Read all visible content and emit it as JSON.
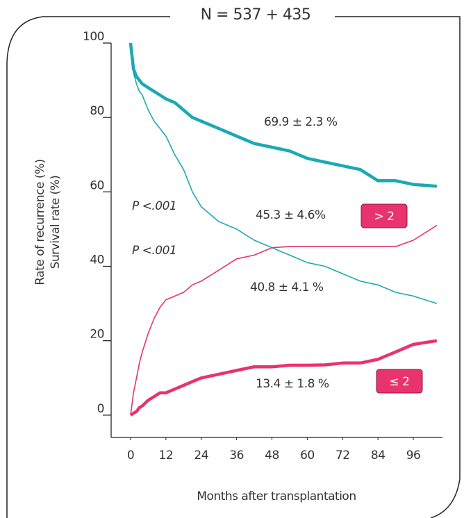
{
  "chart_data": {
    "type": "line",
    "title": "N = 537 + 435",
    "xlabel": "Months after transplantation",
    "ylabels": [
      {
        "text": "Rate of recurrence (%)",
        "color": "#e8336e"
      },
      {
        "text": "Survival rate (%)",
        "color": "#1aa9b5"
      }
    ],
    "x": [
      0,
      1,
      2,
      3,
      4,
      6,
      8,
      10,
      12,
      15,
      18,
      21,
      24,
      30,
      36,
      42,
      48,
      54,
      60,
      66,
      72,
      78,
      84,
      90,
      96,
      104
    ],
    "series": [
      {
        "color": "#1aa9b5",
        "line_width": 4.5,
        "values": [
          100,
          93,
          91,
          90,
          89,
          88,
          87,
          86,
          85,
          84,
          82,
          80,
          79,
          77,
          75,
          73,
          72,
          71,
          69,
          68,
          67,
          66,
          63,
          63,
          62,
          61.5
        ]
      },
      {
        "color": "#1aa9b5",
        "line_width": 1.6,
        "values": [
          100,
          92,
          89,
          87,
          86,
          82,
          79,
          77,
          75,
          70,
          66,
          60,
          56,
          52,
          50,
          47,
          45,
          43,
          41,
          40,
          38,
          36,
          35,
          33,
          32,
          30
        ]
      },
      {
        "color": "#e8336e",
        "line_width": 1.6,
        "values": [
          0,
          6,
          10,
          14,
          17,
          22,
          26,
          29,
          31,
          32,
          33,
          35,
          36,
          39,
          42,
          43,
          45,
          45.3,
          45.3,
          45.3,
          45.3,
          45.3,
          45.3,
          45.3,
          47,
          51
        ]
      },
      {
        "color": "#e8336e",
        "line_width": 4.5,
        "values": [
          0,
          0.5,
          1,
          2,
          2.5,
          4,
          5,
          6,
          6,
          7,
          8,
          9,
          10,
          11,
          12,
          13,
          13,
          13.4,
          13.4,
          13.5,
          14,
          14,
          15,
          17,
          19,
          20
        ]
      }
    ],
    "annotations": [
      {
        "text": "69.9 ± 2.3 %",
        "color": "#1aa9b5"
      },
      {
        "text": "40.8 ± 4.1 %",
        "color": "#1aa9b5"
      },
      {
        "text": "45.3 ± 4.6%",
        "color": "#e8336e"
      },
      {
        "text": "13.4 ± 1.8 %",
        "color": "#e8336e"
      },
      {
        "text": "P <.001",
        "color": "#1aa9b5"
      },
      {
        "text": "P <.001",
        "color": "#e8336e"
      }
    ],
    "group_labels": [
      {
        "text": "> 2",
        "color": "#e8336e"
      },
      {
        "text": "≤ 2",
        "color": "#e8336e"
      }
    ],
    "xlim": [
      -6.6,
      105.9
    ],
    "ylim": [
      -6,
      100
    ],
    "xticks": [
      0,
      12,
      24,
      36,
      48,
      60,
      72,
      84,
      96
    ],
    "yticks": [
      0,
      20,
      40,
      60,
      80,
      100
    ]
  }
}
